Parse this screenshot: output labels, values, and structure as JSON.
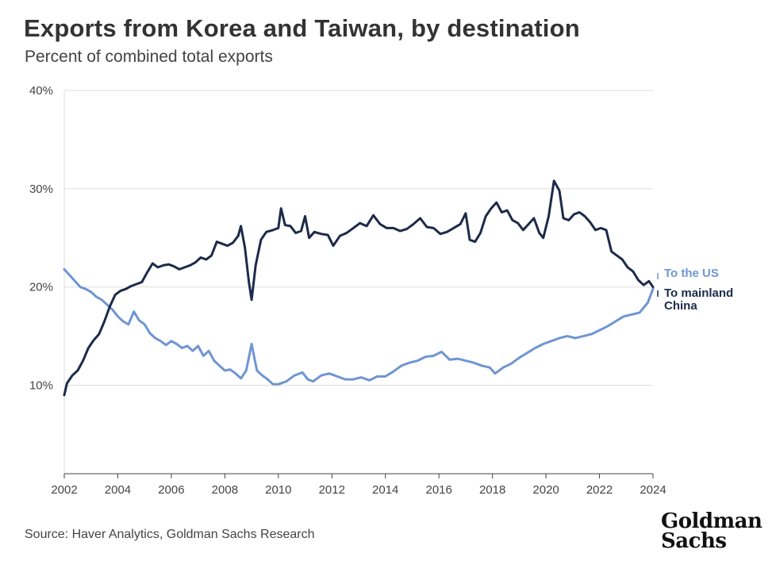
{
  "header": {
    "title": "Exports from Korea and Taiwan, by destination",
    "subtitle": "Percent of combined total exports"
  },
  "footer": {
    "source": "Source: Haver Analytics, Goldman Sachs Research",
    "logo_line1": "Goldman",
    "logo_line2": "Sachs"
  },
  "colors": {
    "us": "#6f95d3",
    "china": "#1c2b4a",
    "grid": "#dedede",
    "axis": "#444444"
  },
  "chart_data": {
    "type": "line",
    "title": "Exports from Korea and Taiwan, by destination",
    "subtitle": "Percent of combined total exports",
    "xlim": [
      2002,
      2024
    ],
    "ylim": [
      1,
      40
    ],
    "x_ticks": [
      2002,
      2004,
      2006,
      2008,
      2010,
      2012,
      2014,
      2016,
      2018,
      2020,
      2022,
      2024
    ],
    "x_tick_labels": [
      "2002",
      "2004",
      "2006",
      "2008",
      "2010",
      "2012",
      "2014",
      "2016",
      "2018",
      "2020",
      "2022",
      "2024"
    ],
    "y_ticks": [
      10,
      20,
      30,
      40
    ],
    "y_tick_labels": [
      "10%",
      "20%",
      "30%",
      "40%"
    ],
    "grid": "horizontal",
    "legend": "inline labels at right end of lines",
    "series": [
      {
        "name": "To the US",
        "label": "To the US",
        "color": "#6f95d3",
        "points": [
          [
            2002.0,
            21.8
          ],
          [
            2002.2,
            21.2
          ],
          [
            2002.4,
            20.6
          ],
          [
            2002.6,
            20.0
          ],
          [
            2002.8,
            19.8
          ],
          [
            2003.0,
            19.5
          ],
          [
            2003.2,
            19.0
          ],
          [
            2003.4,
            18.7
          ],
          [
            2003.6,
            18.2
          ],
          [
            2003.8,
            17.7
          ],
          [
            2004.0,
            17.0
          ],
          [
            2004.2,
            16.5
          ],
          [
            2004.4,
            16.2
          ],
          [
            2004.6,
            17.5
          ],
          [
            2004.8,
            16.6
          ],
          [
            2005.0,
            16.2
          ],
          [
            2005.2,
            15.3
          ],
          [
            2005.4,
            14.8
          ],
          [
            2005.6,
            14.5
          ],
          [
            2005.8,
            14.1
          ],
          [
            2006.0,
            14.5
          ],
          [
            2006.2,
            14.2
          ],
          [
            2006.4,
            13.8
          ],
          [
            2006.6,
            14.0
          ],
          [
            2006.8,
            13.5
          ],
          [
            2007.0,
            14.0
          ],
          [
            2007.2,
            13.0
          ],
          [
            2007.4,
            13.5
          ],
          [
            2007.6,
            12.5
          ],
          [
            2007.8,
            12.0
          ],
          [
            2008.0,
            11.5
          ],
          [
            2008.2,
            11.6
          ],
          [
            2008.4,
            11.2
          ],
          [
            2008.6,
            10.7
          ],
          [
            2008.8,
            11.5
          ],
          [
            2009.0,
            14.2
          ],
          [
            2009.2,
            11.5
          ],
          [
            2009.4,
            11.0
          ],
          [
            2009.6,
            10.6
          ],
          [
            2009.8,
            10.1
          ],
          [
            2010.0,
            10.1
          ],
          [
            2010.3,
            10.4
          ],
          [
            2010.6,
            11.0
          ],
          [
            2010.9,
            11.3
          ],
          [
            2011.1,
            10.6
          ],
          [
            2011.3,
            10.4
          ],
          [
            2011.6,
            11.0
          ],
          [
            2011.9,
            11.2
          ],
          [
            2012.2,
            10.9
          ],
          [
            2012.5,
            10.6
          ],
          [
            2012.8,
            10.6
          ],
          [
            2013.1,
            10.8
          ],
          [
            2013.4,
            10.5
          ],
          [
            2013.7,
            10.9
          ],
          [
            2014.0,
            10.9
          ],
          [
            2014.3,
            11.4
          ],
          [
            2014.6,
            12.0
          ],
          [
            2014.9,
            12.3
          ],
          [
            2015.2,
            12.5
          ],
          [
            2015.5,
            12.9
          ],
          [
            2015.8,
            13.0
          ],
          [
            2016.1,
            13.4
          ],
          [
            2016.4,
            12.6
          ],
          [
            2016.7,
            12.7
          ],
          [
            2017.0,
            12.5
          ],
          [
            2017.3,
            12.3
          ],
          [
            2017.6,
            12.0
          ],
          [
            2017.9,
            11.8
          ],
          [
            2018.1,
            11.2
          ],
          [
            2018.4,
            11.8
          ],
          [
            2018.7,
            12.2
          ],
          [
            2019.0,
            12.8
          ],
          [
            2019.3,
            13.3
          ],
          [
            2019.6,
            13.8
          ],
          [
            2019.9,
            14.2
          ],
          [
            2020.2,
            14.5
          ],
          [
            2020.5,
            14.8
          ],
          [
            2020.8,
            15.0
          ],
          [
            2021.1,
            14.8
          ],
          [
            2021.4,
            15.0
          ],
          [
            2021.7,
            15.2
          ],
          [
            2022.0,
            15.6
          ],
          [
            2022.3,
            16.0
          ],
          [
            2022.6,
            16.5
          ],
          [
            2022.9,
            17.0
          ],
          [
            2023.2,
            17.2
          ],
          [
            2023.5,
            17.4
          ],
          [
            2023.8,
            18.4
          ],
          [
            2024.0,
            19.8
          ]
        ]
      },
      {
        "name": "To mainland China",
        "label_line1": "To mainland",
        "label_line2": "China",
        "color": "#1c2b4a",
        "points": [
          [
            2002.0,
            9.0
          ],
          [
            2002.1,
            10.2
          ],
          [
            2002.3,
            11.0
          ],
          [
            2002.5,
            11.5
          ],
          [
            2002.7,
            12.5
          ],
          [
            2002.9,
            13.8
          ],
          [
            2003.1,
            14.6
          ],
          [
            2003.3,
            15.2
          ],
          [
            2003.5,
            16.5
          ],
          [
            2003.7,
            18.0
          ],
          [
            2003.9,
            19.2
          ],
          [
            2004.1,
            19.6
          ],
          [
            2004.3,
            19.8
          ],
          [
            2004.5,
            20.1
          ],
          [
            2004.7,
            20.3
          ],
          [
            2004.9,
            20.5
          ],
          [
            2005.1,
            21.5
          ],
          [
            2005.3,
            22.4
          ],
          [
            2005.5,
            22.0
          ],
          [
            2005.7,
            22.2
          ],
          [
            2005.9,
            22.3
          ],
          [
            2006.1,
            22.1
          ],
          [
            2006.3,
            21.8
          ],
          [
            2006.5,
            22.0
          ],
          [
            2006.7,
            22.2
          ],
          [
            2006.9,
            22.5
          ],
          [
            2007.1,
            23.0
          ],
          [
            2007.3,
            22.8
          ],
          [
            2007.5,
            23.2
          ],
          [
            2007.7,
            24.6
          ],
          [
            2007.9,
            24.4
          ],
          [
            2008.1,
            24.2
          ],
          [
            2008.3,
            24.5
          ],
          [
            2008.5,
            25.2
          ],
          [
            2008.6,
            26.2
          ],
          [
            2008.75,
            24.0
          ],
          [
            2008.9,
            20.5
          ],
          [
            2009.0,
            18.7
          ],
          [
            2009.15,
            22.2
          ],
          [
            2009.35,
            24.8
          ],
          [
            2009.55,
            25.6
          ],
          [
            2009.8,
            25.8
          ],
          [
            2010.0,
            26.0
          ],
          [
            2010.1,
            28.0
          ],
          [
            2010.25,
            26.3
          ],
          [
            2010.45,
            26.2
          ],
          [
            2010.65,
            25.5
          ],
          [
            2010.85,
            25.7
          ],
          [
            2011.0,
            27.2
          ],
          [
            2011.15,
            25.0
          ],
          [
            2011.35,
            25.6
          ],
          [
            2011.6,
            25.4
          ],
          [
            2011.85,
            25.3
          ],
          [
            2012.05,
            24.2
          ],
          [
            2012.3,
            25.2
          ],
          [
            2012.55,
            25.5
          ],
          [
            2012.8,
            26.0
          ],
          [
            2013.05,
            26.5
          ],
          [
            2013.3,
            26.2
          ],
          [
            2013.55,
            27.3
          ],
          [
            2013.8,
            26.4
          ],
          [
            2014.05,
            26.0
          ],
          [
            2014.3,
            26.0
          ],
          [
            2014.55,
            25.7
          ],
          [
            2014.8,
            25.9
          ],
          [
            2015.05,
            26.4
          ],
          [
            2015.3,
            27.0
          ],
          [
            2015.55,
            26.1
          ],
          [
            2015.8,
            26.0
          ],
          [
            2016.05,
            25.4
          ],
          [
            2016.3,
            25.6
          ],
          [
            2016.55,
            26.0
          ],
          [
            2016.8,
            26.4
          ],
          [
            2017.0,
            27.5
          ],
          [
            2017.15,
            24.8
          ],
          [
            2017.35,
            24.6
          ],
          [
            2017.55,
            25.5
          ],
          [
            2017.75,
            27.2
          ],
          [
            2017.95,
            28.0
          ],
          [
            2018.15,
            28.6
          ],
          [
            2018.35,
            27.6
          ],
          [
            2018.55,
            27.8
          ],
          [
            2018.75,
            26.8
          ],
          [
            2018.95,
            26.5
          ],
          [
            2019.15,
            25.8
          ],
          [
            2019.35,
            26.4
          ],
          [
            2019.55,
            27.0
          ],
          [
            2019.75,
            25.5
          ],
          [
            2019.9,
            25.0
          ],
          [
            2020.1,
            27.2
          ],
          [
            2020.3,
            30.8
          ],
          [
            2020.5,
            29.8
          ],
          [
            2020.65,
            27.0
          ],
          [
            2020.85,
            26.8
          ],
          [
            2021.05,
            27.4
          ],
          [
            2021.25,
            27.6
          ],
          [
            2021.45,
            27.2
          ],
          [
            2021.65,
            26.6
          ],
          [
            2021.85,
            25.8
          ],
          [
            2022.05,
            26.0
          ],
          [
            2022.25,
            25.8
          ],
          [
            2022.45,
            23.6
          ],
          [
            2022.65,
            23.2
          ],
          [
            2022.85,
            22.8
          ],
          [
            2023.05,
            22.0
          ],
          [
            2023.25,
            21.6
          ],
          [
            2023.45,
            20.7
          ],
          [
            2023.65,
            20.2
          ],
          [
            2023.85,
            20.6
          ],
          [
            2024.0,
            20.0
          ]
        ]
      }
    ]
  }
}
